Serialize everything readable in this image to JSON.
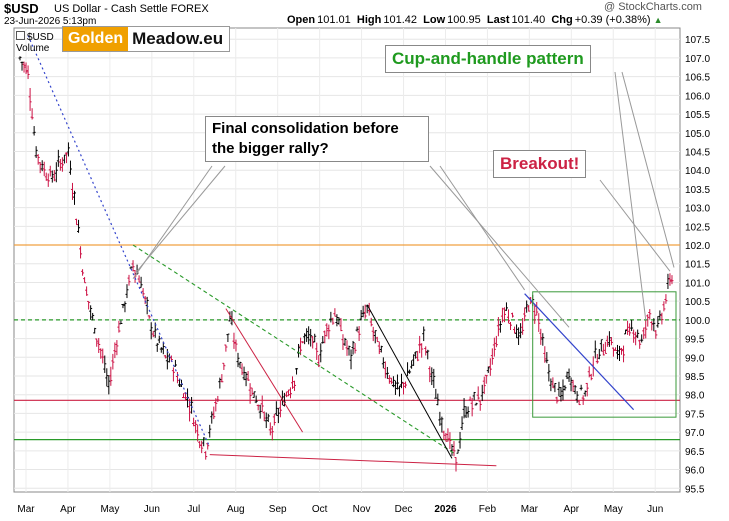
{
  "header": {
    "symbol": "$USD",
    "description": "US Dollar - Cash Settle FOREX",
    "date": "23-Jun-2026 5:13pm",
    "open_label": "Open",
    "open": "101.01",
    "high_label": "High",
    "high": "101.42",
    "low_label": "Low",
    "low": "100.95",
    "last_label": "Last",
    "last": "101.40",
    "chg_label": "Chg",
    "chg": "+0.39 (+0.38%)",
    "brand": "@ StockCharts.com"
  },
  "legend": {
    "series": "$USD",
    "volume": "Volume"
  },
  "logo": {
    "golden": "Golden",
    "meadow": "Meadow.eu"
  },
  "annotations": {
    "consolidation": "Final consolidation before the bigger rally?",
    "cup": "Cup-and-handle pattern",
    "breakout": "Breakout!"
  },
  "colors": {
    "price_up": "#000000",
    "price_down": "#cc1144",
    "orange_line": "#f0a040",
    "green_dashed": "#2a9a2a",
    "red_line": "#cc2244",
    "green_line": "#2a9a2a",
    "blue_dotted": "#3344cc",
    "box": "#3a9a3a"
  },
  "chart_data": {
    "type": "bar",
    "ylim": [
      95.4,
      107.8
    ],
    "y_ticks": [
      "95.5",
      "96.0",
      "96.5",
      "97.0",
      "97.5",
      "98.0",
      "98.5",
      "99.0",
      "99.5",
      "100.0",
      "100.5",
      "101.0",
      "101.5",
      "102.0",
      "102.5",
      "103.0",
      "103.5",
      "104.0",
      "104.5",
      "105.0",
      "105.5",
      "106.0",
      "106.5",
      "107.0",
      "107.5"
    ],
    "x_labels": [
      "Mar",
      "Apr",
      "May",
      "Jun",
      "Jul",
      "Aug",
      "Sep",
      "Oct",
      "Nov",
      "Dec",
      "2026",
      "Feb",
      "Mar",
      "Apr",
      "May",
      "Jun"
    ],
    "horizontal_levels": [
      {
        "value": 102.0,
        "style": "orange"
      },
      {
        "value": 100.0,
        "style": "green-dashed"
      },
      {
        "value": 97.85,
        "style": "red"
      },
      {
        "value": 96.8,
        "style": "green"
      }
    ],
    "price_path": [
      [
        0,
        107.0
      ],
      [
        2,
        106.6
      ],
      [
        4,
        104.5
      ],
      [
        6,
        104.0
      ],
      [
        8,
        103.8
      ],
      [
        10,
        104.2
      ],
      [
        12,
        104.5
      ],
      [
        14,
        102.8
      ],
      [
        16,
        101.0
      ],
      [
        18,
        100.0
      ],
      [
        20,
        99.2
      ],
      [
        22,
        98.2
      ],
      [
        24,
        99.5
      ],
      [
        26,
        100.5
      ],
      [
        28,
        101.5
      ],
      [
        30,
        101.0
      ],
      [
        32,
        100.0
      ],
      [
        34,
        99.4
      ],
      [
        36,
        99.0
      ],
      [
        38,
        98.8
      ],
      [
        40,
        98.2
      ],
      [
        42,
        97.8
      ],
      [
        44,
        97.0
      ],
      [
        46,
        96.6
      ],
      [
        48,
        97.5
      ],
      [
        50,
        98.5
      ],
      [
        52,
        100.0
      ],
      [
        54,
        99.0
      ],
      [
        56,
        98.5
      ],
      [
        58,
        98.0
      ],
      [
        60,
        97.6
      ],
      [
        62,
        97.0
      ],
      [
        64,
        97.5
      ],
      [
        66,
        98.0
      ],
      [
        68,
        98.5
      ],
      [
        70,
        99.5
      ],
      [
        72,
        99.5
      ],
      [
        74,
        99.0
      ],
      [
        76,
        99.8
      ],
      [
        78,
        100.2
      ],
      [
        80,
        99.5
      ],
      [
        82,
        99.0
      ],
      [
        84,
        99.8
      ],
      [
        86,
        100.3
      ],
      [
        88,
        99.5
      ],
      [
        90,
        98.9
      ],
      [
        92,
        98.4
      ],
      [
        94,
        98.1
      ],
      [
        96,
        98.5
      ],
      [
        98,
        99.0
      ],
      [
        100,
        99.5
      ],
      [
        102,
        98.5
      ],
      [
        104,
        97.5
      ],
      [
        106,
        96.8
      ],
      [
        108,
        96.2
      ],
      [
        110,
        97.5
      ],
      [
        112,
        97.8
      ],
      [
        114,
        97.9
      ],
      [
        116,
        98.5
      ],
      [
        118,
        99.5
      ],
      [
        120,
        100.3
      ],
      [
        122,
        100.0
      ],
      [
        124,
        99.5
      ],
      [
        126,
        100.5
      ],
      [
        128,
        100.3
      ],
      [
        130,
        99.0
      ],
      [
        132,
        98.2
      ],
      [
        134,
        97.9
      ],
      [
        136,
        98.6
      ],
      [
        138,
        98.0
      ],
      [
        140,
        98.0
      ],
      [
        142,
        98.9
      ],
      [
        144,
        99.2
      ],
      [
        146,
        99.5
      ],
      [
        148,
        99.0
      ],
      [
        150,
        99.5
      ],
      [
        152,
        99.8
      ],
      [
        154,
        99.4
      ],
      [
        156,
        100.2
      ],
      [
        158,
        99.7
      ],
      [
        160,
        100.6
      ],
      [
        162,
        101.4
      ]
    ],
    "price_range": [
      0,
      162
    ]
  }
}
